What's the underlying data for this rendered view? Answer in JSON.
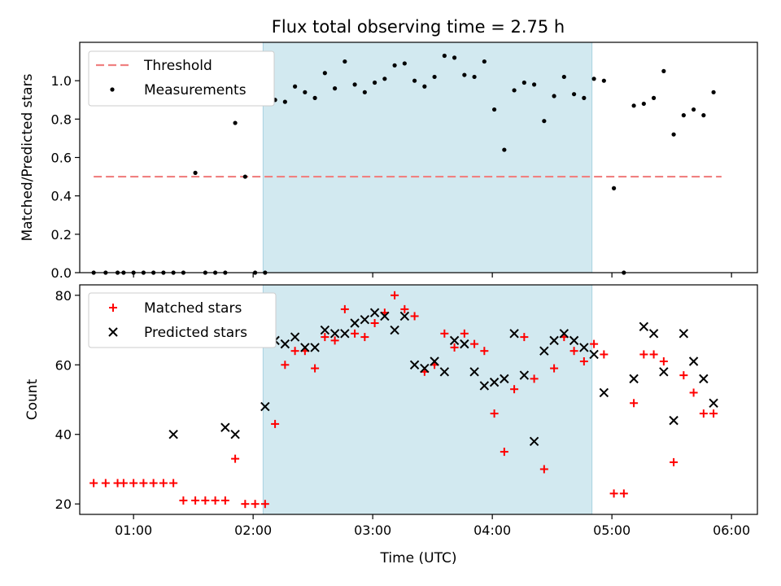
{
  "chart_data": [
    {
      "type": "scatter",
      "title": "Flux total observing time = 2.75 h",
      "xlabel": "",
      "ylabel": "Matched/Predicted stars",
      "xlim": [
        "00:33",
        "06:13"
      ],
      "ylim": [
        0,
        1.2
      ],
      "yticks": [
        0.0,
        0.2,
        0.4,
        0.6,
        0.8,
        1.0
      ],
      "ytick_labels": [
        "0.0",
        "0.2",
        "0.4",
        "0.6",
        "0.8",
        "1.0"
      ],
      "xticks": [
        "01:00",
        "02:00",
        "03:00",
        "04:00",
        "05:00",
        "06:00"
      ],
      "shaded_interval": [
        "02:05",
        "04:50"
      ],
      "shaded_color": "#d2e9f0",
      "legend": {
        "placement": "upper-left",
        "entries": [
          "Threshold",
          "Measurements"
        ]
      },
      "threshold": {
        "name": "Threshold",
        "value": 0.5,
        "x_range": [
          "00:40",
          "05:55"
        ],
        "color": "#f08080"
      },
      "series": [
        {
          "name": "Measurements",
          "color": "#000000",
          "x": [
            "00:40",
            "00:46",
            "00:52",
            "00:55",
            "01:00",
            "01:05",
            "01:10",
            "01:15",
            "01:20",
            "01:25",
            "01:31",
            "01:36",
            "01:41",
            "01:46",
            "01:51",
            "01:56",
            "02:01",
            "02:06",
            "02:11",
            "02:16",
            "02:21",
            "02:26",
            "02:31",
            "02:36",
            "02:41",
            "02:46",
            "02:51",
            "02:56",
            "03:01",
            "03:06",
            "03:11",
            "03:16",
            "03:21",
            "03:26",
            "03:31",
            "03:36",
            "03:41",
            "03:46",
            "03:51",
            "03:56",
            "04:01",
            "04:06",
            "04:11",
            "04:16",
            "04:21",
            "04:26",
            "04:31",
            "04:36",
            "04:41",
            "04:46",
            "04:51",
            "04:56",
            "05:01",
            "05:06",
            "05:11",
            "05:16",
            "05:21",
            "05:26",
            "05:31",
            "05:36",
            "05:41",
            "05:46",
            "05:51"
          ],
          "y": [
            0,
            0,
            0,
            0,
            0,
            0,
            0,
            0,
            0,
            0,
            0.52,
            0,
            0,
            0,
            0.78,
            0.5,
            0,
            0,
            0.9,
            0.89,
            0.97,
            0.94,
            0.91,
            1.04,
            0.96,
            1.1,
            0.98,
            0.94,
            0.99,
            1.01,
            1.08,
            1.09,
            1.0,
            0.97,
            1.02,
            1.13,
            1.12,
            1.03,
            1.02,
            1.1,
            0.85,
            0.64,
            0.95,
            0.99,
            0.98,
            0.79,
            0.92,
            1.02,
            0.93,
            0.91,
            1.01,
            1.0,
            0.44,
            0,
            0.87,
            0.88,
            0.91,
            1.05,
            0.72,
            0.82,
            0.85,
            0.82,
            0.94
          ]
        }
      ]
    },
    {
      "type": "scatter",
      "title": "",
      "xlabel": "Time (UTC)",
      "ylabel": "Count",
      "xlim": [
        "00:33",
        "06:13"
      ],
      "ylim": [
        17,
        83
      ],
      "yticks": [
        20,
        40,
        60,
        80
      ],
      "ytick_labels": [
        "20",
        "40",
        "60",
        "80"
      ],
      "xticks": [
        "01:00",
        "02:00",
        "03:00",
        "04:00",
        "05:00",
        "06:00"
      ],
      "xtick_labels": [
        "01:00",
        "02:00",
        "03:00",
        "04:00",
        "05:00",
        "06:00"
      ],
      "shaded_interval": [
        "02:05",
        "04:50"
      ],
      "shaded_color": "#d2e9f0",
      "legend": {
        "placement": "upper-left",
        "entries": [
          "Matched stars",
          "Predicted stars"
        ]
      },
      "series": [
        {
          "name": "Matched stars",
          "marker": "+",
          "color": "#ff0000",
          "x": [
            "00:40",
            "00:46",
            "00:52",
            "00:55",
            "01:00",
            "01:05",
            "01:10",
            "01:15",
            "01:20",
            "01:25",
            "01:31",
            "01:36",
            "01:41",
            "01:46",
            "01:51",
            "01:56",
            "02:01",
            "02:06",
            "02:11",
            "02:16",
            "02:21",
            "02:26",
            "02:31",
            "02:36",
            "02:41",
            "02:46",
            "02:51",
            "02:56",
            "03:01",
            "03:06",
            "03:11",
            "03:16",
            "03:21",
            "03:26",
            "03:31",
            "03:36",
            "03:41",
            "03:46",
            "03:51",
            "03:56",
            "04:01",
            "04:06",
            "04:11",
            "04:16",
            "04:21",
            "04:26",
            "04:31",
            "04:36",
            "04:41",
            "04:46",
            "04:51",
            "04:56",
            "05:01",
            "05:06",
            "05:11",
            "05:16",
            "05:21",
            "05:26",
            "05:31",
            "05:36",
            "05:41",
            "05:46",
            "05:51"
          ],
          "y": [
            26,
            26,
            26,
            26,
            26,
            26,
            26,
            26,
            26,
            21,
            21,
            21,
            21,
            21,
            33,
            20,
            20,
            20,
            43,
            60,
            64,
            64,
            59,
            68,
            67,
            76,
            69,
            68,
            72,
            75,
            80,
            76,
            74,
            58,
            60,
            69,
            65,
            69,
            66,
            64,
            46,
            35,
            53,
            68,
            56,
            30,
            59,
            68,
            64,
            61,
            66,
            63,
            23,
            23,
            49,
            63,
            63,
            61,
            32,
            57,
            52,
            46,
            46
          ]
        },
        {
          "name": "Predicted stars",
          "marker": "x",
          "color": "#000000",
          "x": [
            "01:20",
            "01:46",
            "01:51",
            "02:06",
            "02:11",
            "02:16",
            "02:21",
            "02:26",
            "02:31",
            "02:36",
            "02:41",
            "02:46",
            "02:51",
            "02:56",
            "03:01",
            "03:06",
            "03:11",
            "03:16",
            "03:21",
            "03:26",
            "03:31",
            "03:36",
            "03:41",
            "03:46",
            "03:51",
            "03:56",
            "04:01",
            "04:06",
            "04:11",
            "04:16",
            "04:21",
            "04:26",
            "04:31",
            "04:36",
            "04:41",
            "04:46",
            "04:51",
            "04:56",
            "05:11",
            "05:16",
            "05:21",
            "05:26",
            "05:31",
            "05:36",
            "05:41",
            "05:46",
            "05:51"
          ],
          "y": [
            40,
            42,
            40,
            48,
            67,
            66,
            68,
            65,
            65,
            70,
            69,
            69,
            72,
            73,
            75,
            74,
            70,
            74,
            60,
            59,
            61,
            58,
            67,
            66,
            58,
            54,
            55,
            56,
            69,
            57,
            38,
            64,
            67,
            69,
            67,
            65,
            63,
            52,
            56,
            71,
            69,
            58,
            44,
            69,
            61,
            56,
            49
          ]
        }
      ]
    }
  ]
}
